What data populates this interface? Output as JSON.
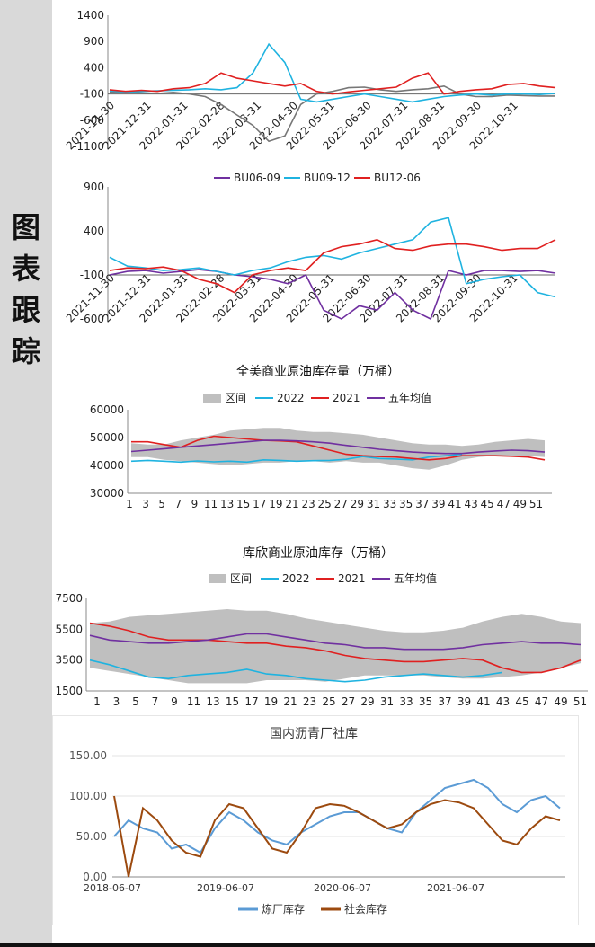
{
  "sidebar": {
    "title": [
      "图",
      "表",
      "跟",
      "踪"
    ]
  },
  "charts": {
    "c1": {
      "type": "line",
      "title": "",
      "legend": [],
      "x_labels": [
        "2021-11-30",
        "2021-12-31",
        "2022-01-31",
        "2022-02-28",
        "2022-03-31",
        "2022-04-30",
        "2022-05-31",
        "2022-06-30",
        "2022-07-31",
        "2022-08-31",
        "2022-09-30",
        "2022-10-31"
      ],
      "y_ticks": [
        "1400",
        "900",
        "400",
        "-100",
        "-600",
        "-1100"
      ],
      "series": [
        {
          "color": "#777777",
          "values": [
            -60,
            -70,
            -80,
            -90,
            -70,
            -100,
            -150,
            -300,
            -500,
            -700,
            -1000,
            -900,
            -300,
            -100,
            -50,
            20,
            30,
            -20,
            -50,
            -20,
            0,
            50,
            -100,
            -150,
            -150,
            -120,
            -130,
            -140,
            -140
          ]
        },
        {
          "color": "#1fb3e0",
          "values": [
            -40,
            -60,
            -50,
            -40,
            -30,
            -20,
            0,
            -20,
            20,
            300,
            850,
            500,
            -200,
            -250,
            -200,
            -150,
            -100,
            -150,
            -200,
            -250,
            -200,
            -150,
            -120,
            -100,
            -120,
            -100,
            -100,
            -110,
            -90
          ]
        },
        {
          "color": "#e02020",
          "values": [
            -20,
            -50,
            -30,
            -50,
            0,
            20,
            100,
            300,
            200,
            150,
            100,
            50,
            100,
            -50,
            -100,
            -60,
            -30,
            0,
            30,
            200,
            300,
            -100,
            -50,
            -20,
            0,
            80,
            100,
            50,
            20
          ]
        }
      ]
    },
    "c2": {
      "type": "line",
      "title": "",
      "legend": [
        {
          "name": "BU06-09",
          "color": "#7030a0"
        },
        {
          "name": "BU09-12",
          "color": "#1fb3e0"
        },
        {
          "name": "BU12-06",
          "color": "#e02020"
        }
      ],
      "x_labels": [
        "2021-11-30",
        "2021-12-31",
        "2022-01-31",
        "2022-02-28",
        "2022-03-31",
        "2022-04-30",
        "2022-05-31",
        "2022-06-30",
        "2022-07-31",
        "2022-08-31",
        "2022-09-30",
        "2022-10-31"
      ],
      "y_ticks": [
        "900",
        "400",
        "-100",
        "-600"
      ],
      "series": [
        {
          "color": "#7030a0",
          "values": [
            -100,
            -60,
            -50,
            -80,
            -60,
            -40,
            -60,
            -100,
            -120,
            -150,
            -200,
            -100,
            -500,
            -600,
            -450,
            -500,
            -300,
            -500,
            -600,
            -50,
            -100,
            -50,
            -50,
            -60,
            -50,
            -80
          ]
        },
        {
          "color": "#1fb3e0",
          "values": [
            100,
            0,
            -20,
            -50,
            -40,
            -20,
            -60,
            -100,
            -50,
            -20,
            50,
            100,
            120,
            80,
            150,
            200,
            250,
            300,
            500,
            550,
            -200,
            -150,
            -120,
            -100,
            -300,
            -350
          ]
        },
        {
          "color": "#e02020",
          "values": [
            -50,
            -20,
            -30,
            -10,
            -50,
            -150,
            -200,
            -300,
            -100,
            -50,
            -20,
            -50,
            150,
            220,
            250,
            300,
            200,
            180,
            230,
            250,
            250,
            220,
            180,
            200,
            200,
            300
          ]
        }
      ]
    },
    "c3": {
      "type": "line",
      "title": "全美商业原油库存量（万桶）",
      "legend": [
        {
          "name": "区间",
          "color": "#bfbfbf"
        },
        {
          "name": "2022",
          "color": "#1fb3e0"
        },
        {
          "name": "2021",
          "color": "#e02020"
        },
        {
          "name": "五年均值",
          "color": "#7030a0"
        }
      ],
      "x_labels": [
        "1",
        "3",
        "5",
        "7",
        "9",
        "11",
        "13",
        "15",
        "17",
        "19",
        "21",
        "23",
        "25",
        "27",
        "29",
        "31",
        "33",
        "35",
        "37",
        "39",
        "41",
        "43",
        "45",
        "47",
        "49",
        "51"
      ],
      "y_ticks": [
        "60000",
        "50000",
        "40000",
        "30000"
      ],
      "ylim": [
        30000,
        60000
      ],
      "band_upper": [
        48000,
        47500,
        47500,
        49000,
        50000,
        51000,
        52500,
        53000,
        53500,
        53500,
        52500,
        52000,
        52000,
        51500,
        51000,
        50000,
        49000,
        48000,
        47500,
        47500,
        47000,
        47500,
        48500,
        49000,
        49500,
        49000
      ],
      "band_lower": [
        43000,
        43000,
        42000,
        41500,
        41000,
        40500,
        40000,
        40500,
        41000,
        41000,
        41500,
        41500,
        41000,
        41500,
        41000,
        41000,
        40000,
        39000,
        38500,
        40000,
        42000,
        43000,
        43500,
        43500,
        43500,
        43000
      ],
      "series": [
        {
          "name": "2022",
          "color": "#1fb3e0",
          "values": [
            41500,
            41800,
            41500,
            41200,
            41600,
            41300,
            41500,
            41200,
            42000,
            41800,
            41500,
            41700,
            41800,
            42200,
            43200,
            42500,
            42300,
            42000,
            43000,
            43500,
            44000
          ]
        },
        {
          "name": "2021",
          "color": "#e02020",
          "values": [
            48500,
            48500,
            47500,
            46500,
            49000,
            50500,
            50000,
            49500,
            49000,
            48800,
            48500,
            47000,
            45500,
            44000,
            43500,
            43200,
            43000,
            42500,
            42000,
            42500,
            43500,
            43500,
            43500,
            43300,
            43000,
            42000
          ]
        },
        {
          "name": "五年均值",
          "color": "#7030a0",
          "values": [
            45000,
            45500,
            46000,
            46500,
            47000,
            47500,
            48000,
            48500,
            49000,
            49000,
            48800,
            48500,
            48000,
            47200,
            46500,
            45800,
            45300,
            44800,
            44500,
            44300,
            44300,
            44800,
            45200,
            45500,
            45300,
            44800
          ]
        }
      ]
    },
    "c4": {
      "type": "line",
      "title": "库欣商业原油库存（万桶）",
      "legend": [
        {
          "name": "区间",
          "color": "#bfbfbf"
        },
        {
          "name": "2022",
          "color": "#1fb3e0"
        },
        {
          "name": "2021",
          "color": "#e02020"
        },
        {
          "name": "五年均值",
          "color": "#7030a0"
        }
      ],
      "x_labels": [
        "1",
        "3",
        "5",
        "7",
        "9",
        "11",
        "13",
        "15",
        "17",
        "19",
        "21",
        "23",
        "25",
        "27",
        "29",
        "31",
        "33",
        "35",
        "37",
        "39",
        "41",
        "43",
        "45",
        "47",
        "49",
        "51"
      ],
      "y_ticks": [
        "7500",
        "5500",
        "3500",
        "1500"
      ],
      "ylim": [
        1500,
        7500
      ],
      "band_upper": [
        5900,
        6000,
        6300,
        6400,
        6500,
        6600,
        6700,
        6800,
        6700,
        6700,
        6500,
        6200,
        6000,
        5800,
        5600,
        5400,
        5300,
        5300,
        5400,
        5600,
        6000,
        6300,
        6500,
        6300,
        6000,
        5900
      ],
      "band_lower": [
        3000,
        2800,
        2600,
        2400,
        2200,
        2000,
        2000,
        2000,
        2000,
        2200,
        2200,
        2200,
        2100,
        2300,
        2500,
        2500,
        2500,
        2500,
        2400,
        2300,
        2300,
        2400,
        2500,
        2700,
        3000,
        3300
      ],
      "series": [
        {
          "name": "2022",
          "color": "#1fb3e0",
          "values": [
            3500,
            3200,
            2800,
            2400,
            2300,
            2500,
            2600,
            2700,
            2900,
            2600,
            2500,
            2300,
            2200,
            2100,
            2200,
            2400,
            2500,
            2600,
            2500,
            2400,
            2500,
            2700
          ]
        },
        {
          "name": "2021",
          "color": "#e02020",
          "values": [
            5900,
            5700,
            5400,
            5000,
            4800,
            4800,
            4800,
            4700,
            4600,
            4600,
            4400,
            4300,
            4100,
            3800,
            3600,
            3500,
            3400,
            3400,
            3500,
            3600,
            3500,
            3000,
            2700,
            2700,
            3000,
            3500
          ]
        },
        {
          "name": "五年均值",
          "color": "#7030a0",
          "values": [
            5100,
            4800,
            4700,
            4600,
            4600,
            4700,
            4800,
            5000,
            5200,
            5200,
            5000,
            4800,
            4600,
            4500,
            4300,
            4300,
            4200,
            4200,
            4200,
            4300,
            4500,
            4600,
            4700,
            4600,
            4600,
            4500
          ]
        }
      ]
    },
    "c5": {
      "type": "line",
      "title": "国内沥青厂社库",
      "legend": [
        {
          "name": "炼厂库存",
          "color": "#5b9bd5"
        },
        {
          "name": "社会库存",
          "color": "#9c4a0f"
        }
      ],
      "x_labels": [
        "2018-06-07",
        "2019-06-07",
        "2020-06-07",
        "2021-06-07"
      ],
      "y_ticks": [
        "150.00",
        "100.00",
        "50.00",
        "0.00"
      ],
      "ylim": [
        0,
        150
      ],
      "series": [
        {
          "name": "炼厂库存",
          "color": "#5b9bd5",
          "values": [
            50,
            70,
            60,
            55,
            35,
            40,
            30,
            60,
            80,
            70,
            55,
            45,
            40,
            55,
            65,
            75,
            80,
            80,
            70,
            60,
            55,
            80,
            95,
            110,
            115,
            120,
            110,
            90,
            80,
            95,
            100,
            85
          ]
        },
        {
          "name": "社会库存",
          "color": "#9c4a0f",
          "values": [
            100,
            0,
            85,
            70,
            45,
            30,
            25,
            70,
            90,
            85,
            60,
            35,
            30,
            55,
            85,
            90,
            88,
            80,
            70,
            60,
            65,
            80,
            90,
            95,
            92,
            85,
            65,
            45,
            40,
            60,
            75,
            70
          ]
        }
      ]
    }
  }
}
